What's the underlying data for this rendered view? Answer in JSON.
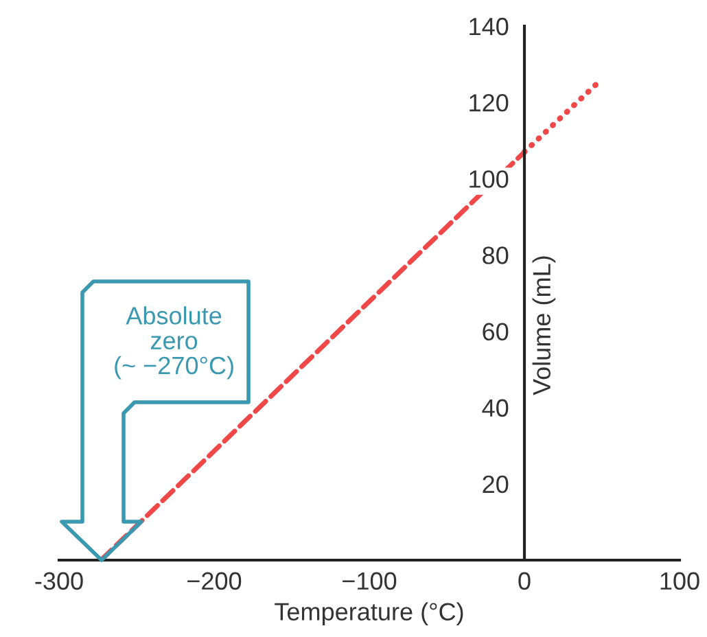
{
  "chart_data": {
    "type": "line",
    "xlabel": "Temperature (°C)",
    "ylabel": "Volume (mL)",
    "series": [
      {
        "color": "#f04848",
        "line_style": "dashed",
        "x": [
          -273,
          0
        ],
        "values": [
          0,
          107
        ]
      },
      {
        "color": "#f04848",
        "line_style": "dotted",
        "x": [
          0,
          47
        ],
        "values": [
          107,
          125
        ]
      }
    ],
    "xlim": [
      -300,
      100
    ],
    "xticks": [
      -300,
      -200,
      -100,
      0,
      100
    ],
    "ylim": [
      0,
      140
    ],
    "yticks": [
      20,
      40,
      60,
      80,
      100,
      120,
      140
    ],
    "grid": false,
    "legend": false,
    "marker": "none",
    "annotations": [
      "Absolute\nzero\n(~ −270°C)"
    ]
  }
}
